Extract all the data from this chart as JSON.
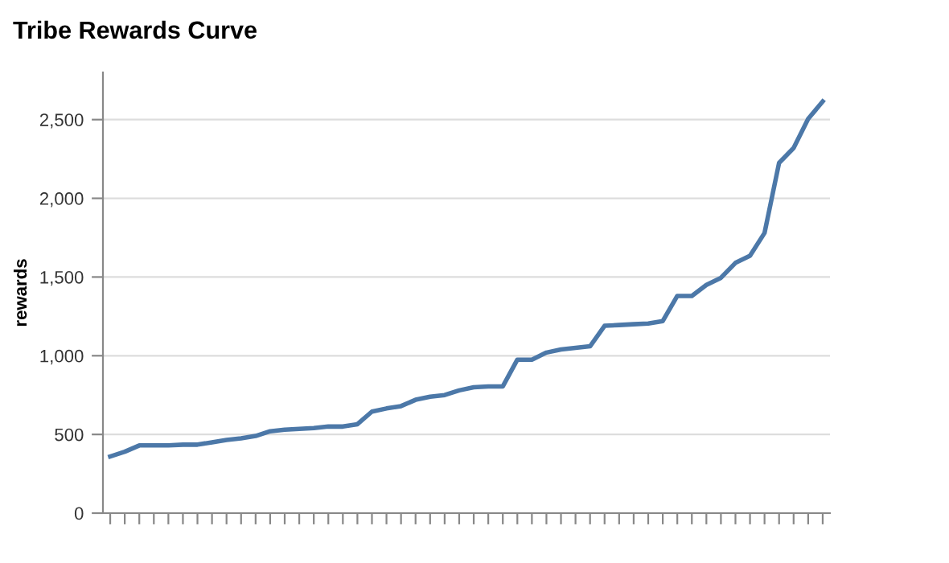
{
  "chart_data": {
    "type": "line",
    "title": "Tribe Rewards Curve",
    "ylabel": "rewards",
    "categories": [
      null,
      null,
      null,
      null,
      null,
      null,
      null,
      null,
      null,
      null,
      null,
      null,
      null,
      null,
      null,
      null,
      null,
      null,
      null,
      null,
      null,
      null,
      null,
      null,
      null,
      null,
      null,
      null,
      null,
      null,
      null,
      null,
      null,
      null,
      null,
      null,
      null,
      null,
      null,
      null,
      null,
      null,
      null,
      null,
      null,
      null,
      null,
      null,
      null,
      null
    ],
    "series": [
      {
        "color": "#4c78a8",
        "values": [
          360,
          390,
          430,
          430,
          430,
          435,
          435,
          450,
          465,
          475,
          490,
          520,
          530,
          535,
          540,
          550,
          550,
          565,
          645,
          665,
          680,
          720,
          740,
          750,
          780,
          800,
          805,
          805,
          975,
          975,
          1020,
          1040,
          1050,
          1060,
          1190,
          1195,
          1200,
          1205,
          1220,
          1380,
          1380,
          1450,
          1495,
          1590,
          1635,
          1780,
          2225,
          2320,
          2505,
          2615
        ]
      }
    ],
    "ylim": [
      0,
      2800
    ],
    "yticks": [
      {
        "value": 0,
        "label": "0"
      },
      {
        "value": 500,
        "label": "500"
      },
      {
        "value": 1000,
        "label": "1,000"
      },
      {
        "value": 1500,
        "label": "1,500"
      },
      {
        "value": 2000,
        "label": "2,000"
      },
      {
        "value": 2500,
        "label": "2,500"
      }
    ],
    "grid": "y",
    "marker": "none",
    "line_style": "solid",
    "tick_labels": "y"
  }
}
